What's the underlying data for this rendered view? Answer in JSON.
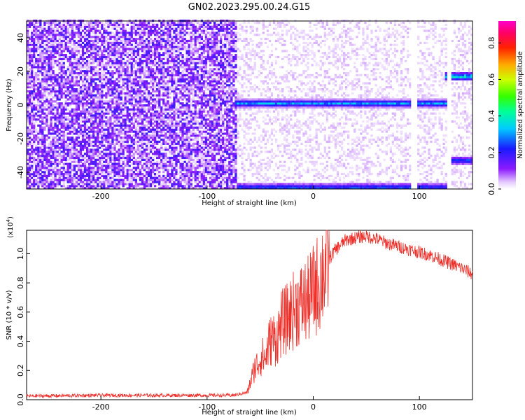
{
  "title": "GN02.2023.295.00.24.G15",
  "chart_data": [
    {
      "type": "heatmap",
      "xlabel": "Height of straight line (km)",
      "ylabel": "Frequency (Hz)",
      "xlim": [
        -270,
        150
      ],
      "ylim": [
        -50,
        50
      ],
      "x_ticks": [
        -200,
        -100,
        0,
        100
      ],
      "x_tick_labels": [
        "-200",
        "-100",
        "0",
        "100"
      ],
      "y_ticks": [
        -40,
        -20,
        0,
        20,
        40
      ],
      "y_tick_labels": [
        "-40",
        "-20",
        "0",
        "20",
        "40"
      ],
      "colorbar": {
        "label": "Normalized spectral amplitude",
        "range": [
          0,
          0.92
        ],
        "ticks": [
          0.0,
          0.2,
          0.4,
          0.6,
          0.8
        ],
        "tick_labels": [
          "0.0",
          "0.2",
          "0.4",
          "0.6",
          "0.8"
        ],
        "colormap": "rainbow (white-violet-blue-cyan-green-yellow-orange-red-magenta)"
      },
      "features": [
        {
          "name": "noise_region",
          "x": [
            -270,
            -72
          ],
          "level": 0.12
        },
        {
          "name": "signal_line_0Hz",
          "x": [
            -72,
            125
          ],
          "freq_hz": 1,
          "peak": 0.35
        },
        {
          "name": "signal_line_-50Hz",
          "x": [
            -70,
            125
          ],
          "freq_hz": -49,
          "peak": 0.3
        },
        {
          "name": "signal_line_17Hz",
          "x": [
            125,
            150
          ],
          "freq_hz": 17,
          "peak": 0.45
        },
        {
          "name": "signal_line_-33Hz",
          "x": [
            128,
            150
          ],
          "freq_hz": -33,
          "peak": 0.3
        },
        {
          "name": "gap_1",
          "x": [
            93,
            97
          ]
        },
        {
          "name": "gap_2",
          "x": [
            126,
            129
          ]
        }
      ]
    },
    {
      "type": "line",
      "xlabel": "Height of straight line (km)",
      "ylabel": "SNR (10 * v/v)",
      "multiplier_label": "(x10",
      "multiplier_exponent": "4",
      "xlim": [
        -270,
        150
      ],
      "ylim": [
        0,
        11600
      ],
      "x_ticks": [
        -200,
        -100,
        0,
        100
      ],
      "x_tick_labels": [
        "-200",
        "-100",
        "0",
        "100"
      ],
      "y_ticks": [
        0,
        2000,
        4000,
        6000,
        8000,
        10000
      ],
      "y_tick_labels": [
        "0.0",
        "0.2",
        "0.4",
        "0.6",
        "0.8",
        "1.0"
      ],
      "color": "#ef2e28",
      "series": [
        {
          "x": [
            -270,
            -200,
            -150,
            -100,
            -75,
            -62,
            -58,
            -55,
            -52,
            -48,
            -45,
            -42,
            -38,
            -35,
            -30,
            -25,
            -20,
            -15,
            -10,
            -5,
            0,
            5,
            10,
            20,
            30,
            40,
            50,
            60,
            70,
            80,
            90,
            100,
            110,
            120,
            130,
            140,
            150
          ],
          "values": [
            250,
            300,
            300,
            300,
            300,
            500,
            1500,
            2200,
            2500,
            3000,
            2800,
            3800,
            4300,
            4000,
            5200,
            5500,
            6000,
            6400,
            6600,
            6800,
            7400,
            8000,
            9000,
            10200,
            10900,
            11100,
            11200,
            11000,
            10700,
            10500,
            10300,
            10100,
            9900,
            9600,
            9300,
            9000,
            8600
          ]
        }
      ]
    }
  ]
}
